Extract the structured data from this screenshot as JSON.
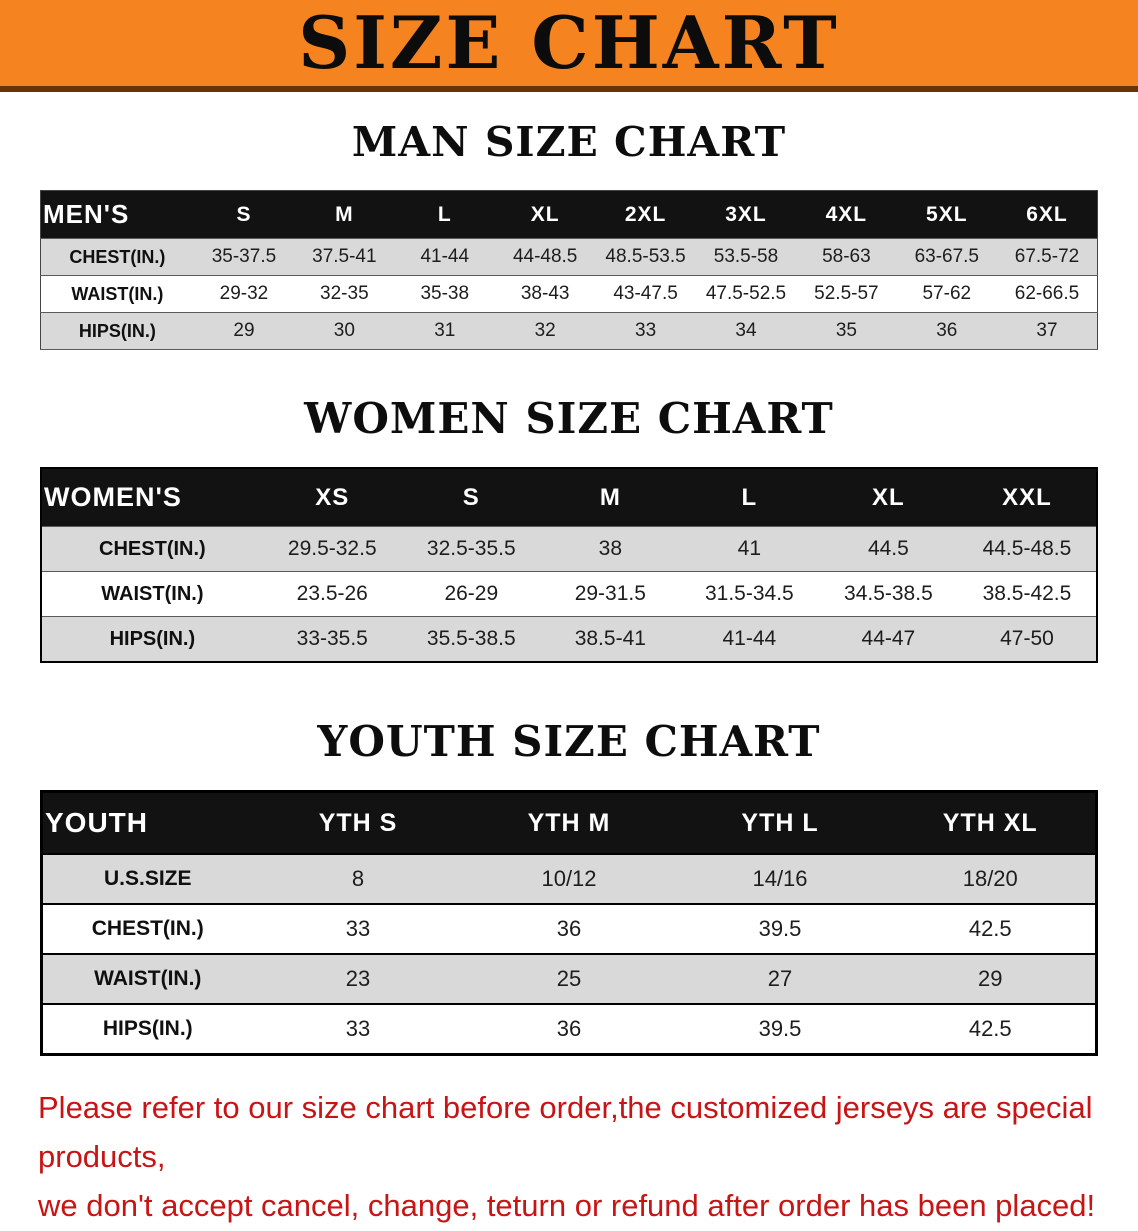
{
  "banner": {
    "title": "SIZE CHART"
  },
  "colors": {
    "banner_bg": "#f5831f",
    "banner_border": "#6a3305",
    "table_header_bg": "#121212",
    "row_stripe": "#d9d9d9",
    "footer_text": "#c81414",
    "heading_text": "#0d0d0d"
  },
  "footer": {
    "line1": "Please refer to our size chart before order,the customized jerseys are special products,",
    "line2": "we don't accept cancel, change, teturn or refund after order has been placed!"
  },
  "chart_data": [
    {
      "type": "table",
      "title": "MAN SIZE CHART",
      "header": [
        "MEN'S",
        "S",
        "M",
        "L",
        "XL",
        "2XL",
        "3XL",
        "4XL",
        "5XL",
        "6XL"
      ],
      "rows": [
        [
          "CHEST(IN.)",
          "35-37.5",
          "37.5-41",
          "41-44",
          "44-48.5",
          "48.5-53.5",
          "53.5-58",
          "58-63",
          "63-67.5",
          "67.5-72"
        ],
        [
          "WAIST(IN.)",
          "29-32",
          "32-35",
          "35-38",
          "38-43",
          "43-47.5",
          "47.5-52.5",
          "52.5-57",
          "57-62",
          "62-66.5"
        ],
        [
          "HIPS(IN.)",
          "29",
          "30",
          "31",
          "32",
          "33",
          "34",
          "35",
          "36",
          "37"
        ]
      ]
    },
    {
      "type": "table",
      "title": "WOMEN SIZE CHART",
      "header": [
        "WOMEN'S",
        "XS",
        "S",
        "M",
        "L",
        "XL",
        "XXL"
      ],
      "rows": [
        [
          "CHEST(IN.)",
          "29.5-32.5",
          "32.5-35.5",
          "38",
          "41",
          "44.5",
          "44.5-48.5"
        ],
        [
          "WAIST(IN.)",
          "23.5-26",
          "26-29",
          "29-31.5",
          "31.5-34.5",
          "34.5-38.5",
          "38.5-42.5"
        ],
        [
          "HIPS(IN.)",
          "33-35.5",
          "35.5-38.5",
          "38.5-41",
          "41-44",
          "44-47",
          "47-50"
        ]
      ]
    },
    {
      "type": "table",
      "title": "YOUTH SIZE CHART",
      "header": [
        "YOUTH",
        "YTH S",
        "YTH M",
        "YTH L",
        "YTH XL"
      ],
      "rows": [
        [
          "U.S.SIZE",
          "8",
          "10/12",
          "14/16",
          "18/20"
        ],
        [
          "CHEST(IN.)",
          "33",
          "36",
          "39.5",
          "42.5"
        ],
        [
          "WAIST(IN.)",
          "23",
          "25",
          "27",
          "29"
        ],
        [
          "HIPS(IN.)",
          "33",
          "36",
          "39.5",
          "42.5"
        ]
      ]
    }
  ]
}
